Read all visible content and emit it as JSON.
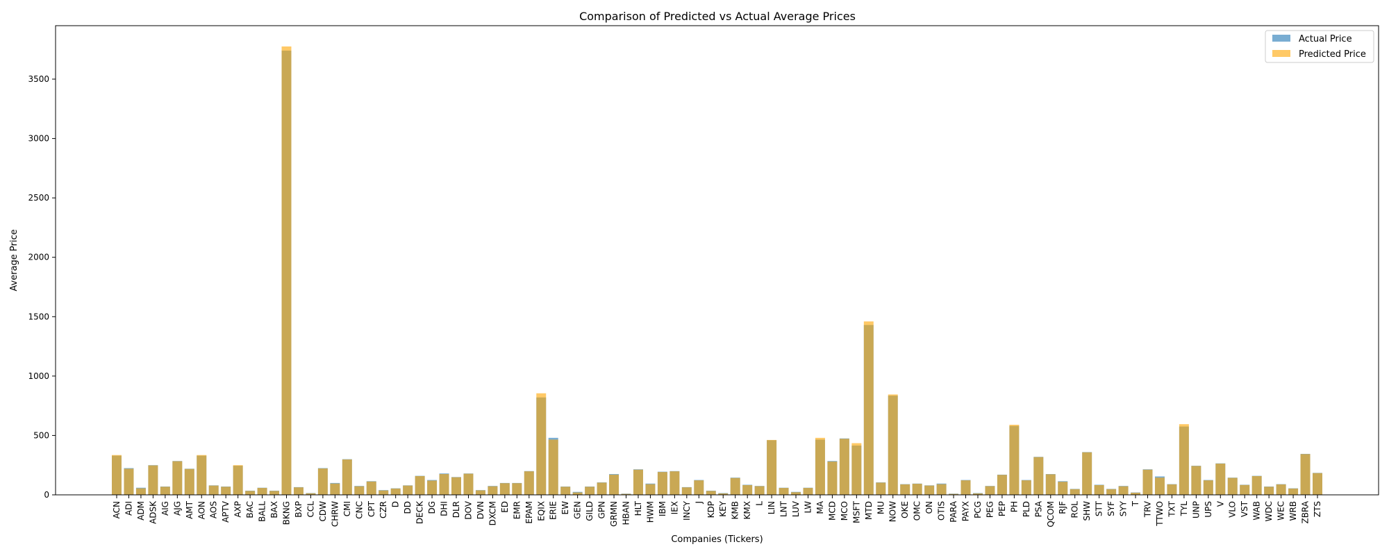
{
  "chart_data": {
    "type": "bar",
    "title": "Comparison of Predicted vs Actual Average Prices",
    "xlabel": "Companies (Tickers)",
    "ylabel": "Average Price",
    "ylim": [
      0,
      3950
    ],
    "yticks": [
      0,
      500,
      1000,
      1500,
      2000,
      2500,
      3000,
      3500
    ],
    "legend_position": "top-right",
    "grid": false,
    "categories": [
      "ACN",
      "ADI",
      "ADM",
      "ADSK",
      "AIG",
      "AJG",
      "AMT",
      "AON",
      "AOS",
      "APTV",
      "AXP",
      "BAC",
      "BALL",
      "BAX",
      "BKNG",
      "BXP",
      "CCL",
      "CDW",
      "CHRW",
      "CMI",
      "CNC",
      "CPT",
      "CZR",
      "D",
      "DD",
      "DECK",
      "DG",
      "DHI",
      "DLR",
      "DOV",
      "DVN",
      "DXCM",
      "ED",
      "EMR",
      "EPAM",
      "EQIX",
      "ERIE",
      "EW",
      "GEN",
      "GILD",
      "GPN",
      "GRMN",
      "HBAN",
      "HLT",
      "HWM",
      "IBM",
      "IEX",
      "INCY",
      "J",
      "KDP",
      "KEY",
      "KMB",
      "KMX",
      "L",
      "LIN",
      "LNT",
      "LUV",
      "LW",
      "MA",
      "MCD",
      "MCO",
      "MSFT",
      "MTD",
      "MU",
      "NOW",
      "OKE",
      "OMC",
      "ON",
      "OTIS",
      "PARA",
      "PAYX",
      "PCG",
      "PEG",
      "PEP",
      "PH",
      "PLD",
      "PSA",
      "QCOM",
      "RJF",
      "ROL",
      "SHW",
      "STT",
      "SYF",
      "SYY",
      "T",
      "TRV",
      "TTWO",
      "TXT",
      "TYL",
      "UNP",
      "UPS",
      "V",
      "VLO",
      "VST",
      "WAB",
      "WDC",
      "WEC",
      "WRB",
      "ZBRA",
      "ZTS"
    ],
    "series": [
      {
        "name": "Actual Price",
        "color": "#1f77b4",
        "values": [
          330,
          225,
          60,
          250,
          70,
          285,
          220,
          330,
          80,
          70,
          245,
          35,
          60,
          35,
          3740,
          65,
          15,
          225,
          100,
          300,
          75,
          115,
          40,
          55,
          80,
          160,
          125,
          180,
          150,
          180,
          40,
          75,
          100,
          100,
          200,
          820,
          480,
          70,
          25,
          70,
          105,
          175,
          10,
          215,
          95,
          195,
          200,
          65,
          125,
          35,
          15,
          145,
          85,
          75,
          460,
          60,
          25,
          60,
          465,
          285,
          475,
          415,
          1430,
          105,
          835,
          90,
          95,
          80,
          95,
          10,
          125,
          15,
          75,
          170,
          580,
          125,
          320,
          175,
          115,
          50,
          360,
          85,
          50,
          75,
          20,
          215,
          155,
          90,
          575,
          245,
          125,
          265,
          145,
          85,
          160,
          70,
          90,
          55,
          345,
          185
        ]
      },
      {
        "name": "Predicted Price",
        "color": "#ffa500",
        "values": [
          335,
          220,
          55,
          248,
          68,
          283,
          218,
          335,
          78,
          68,
          250,
          33,
          58,
          33,
          3775,
          63,
          13,
          222,
          95,
          298,
          72,
          112,
          37,
          53,
          78,
          158,
          120,
          175,
          148,
          178,
          38,
          72,
          98,
          98,
          198,
          855,
          465,
          68,
          20,
          68,
          103,
          170,
          8,
          212,
          90,
          192,
          198,
          63,
          122,
          33,
          12,
          142,
          82,
          73,
          462,
          58,
          22,
          58,
          480,
          280,
          472,
          435,
          1460,
          103,
          845,
          88,
          93,
          78,
          90,
          8,
          122,
          12,
          73,
          168,
          590,
          122,
          318,
          173,
          110,
          48,
          358,
          82,
          48,
          72,
          18,
          212,
          145,
          88,
          595,
          243,
          122,
          263,
          143,
          83,
          158,
          68,
          88,
          53,
          343,
          183
        ]
      }
    ]
  }
}
